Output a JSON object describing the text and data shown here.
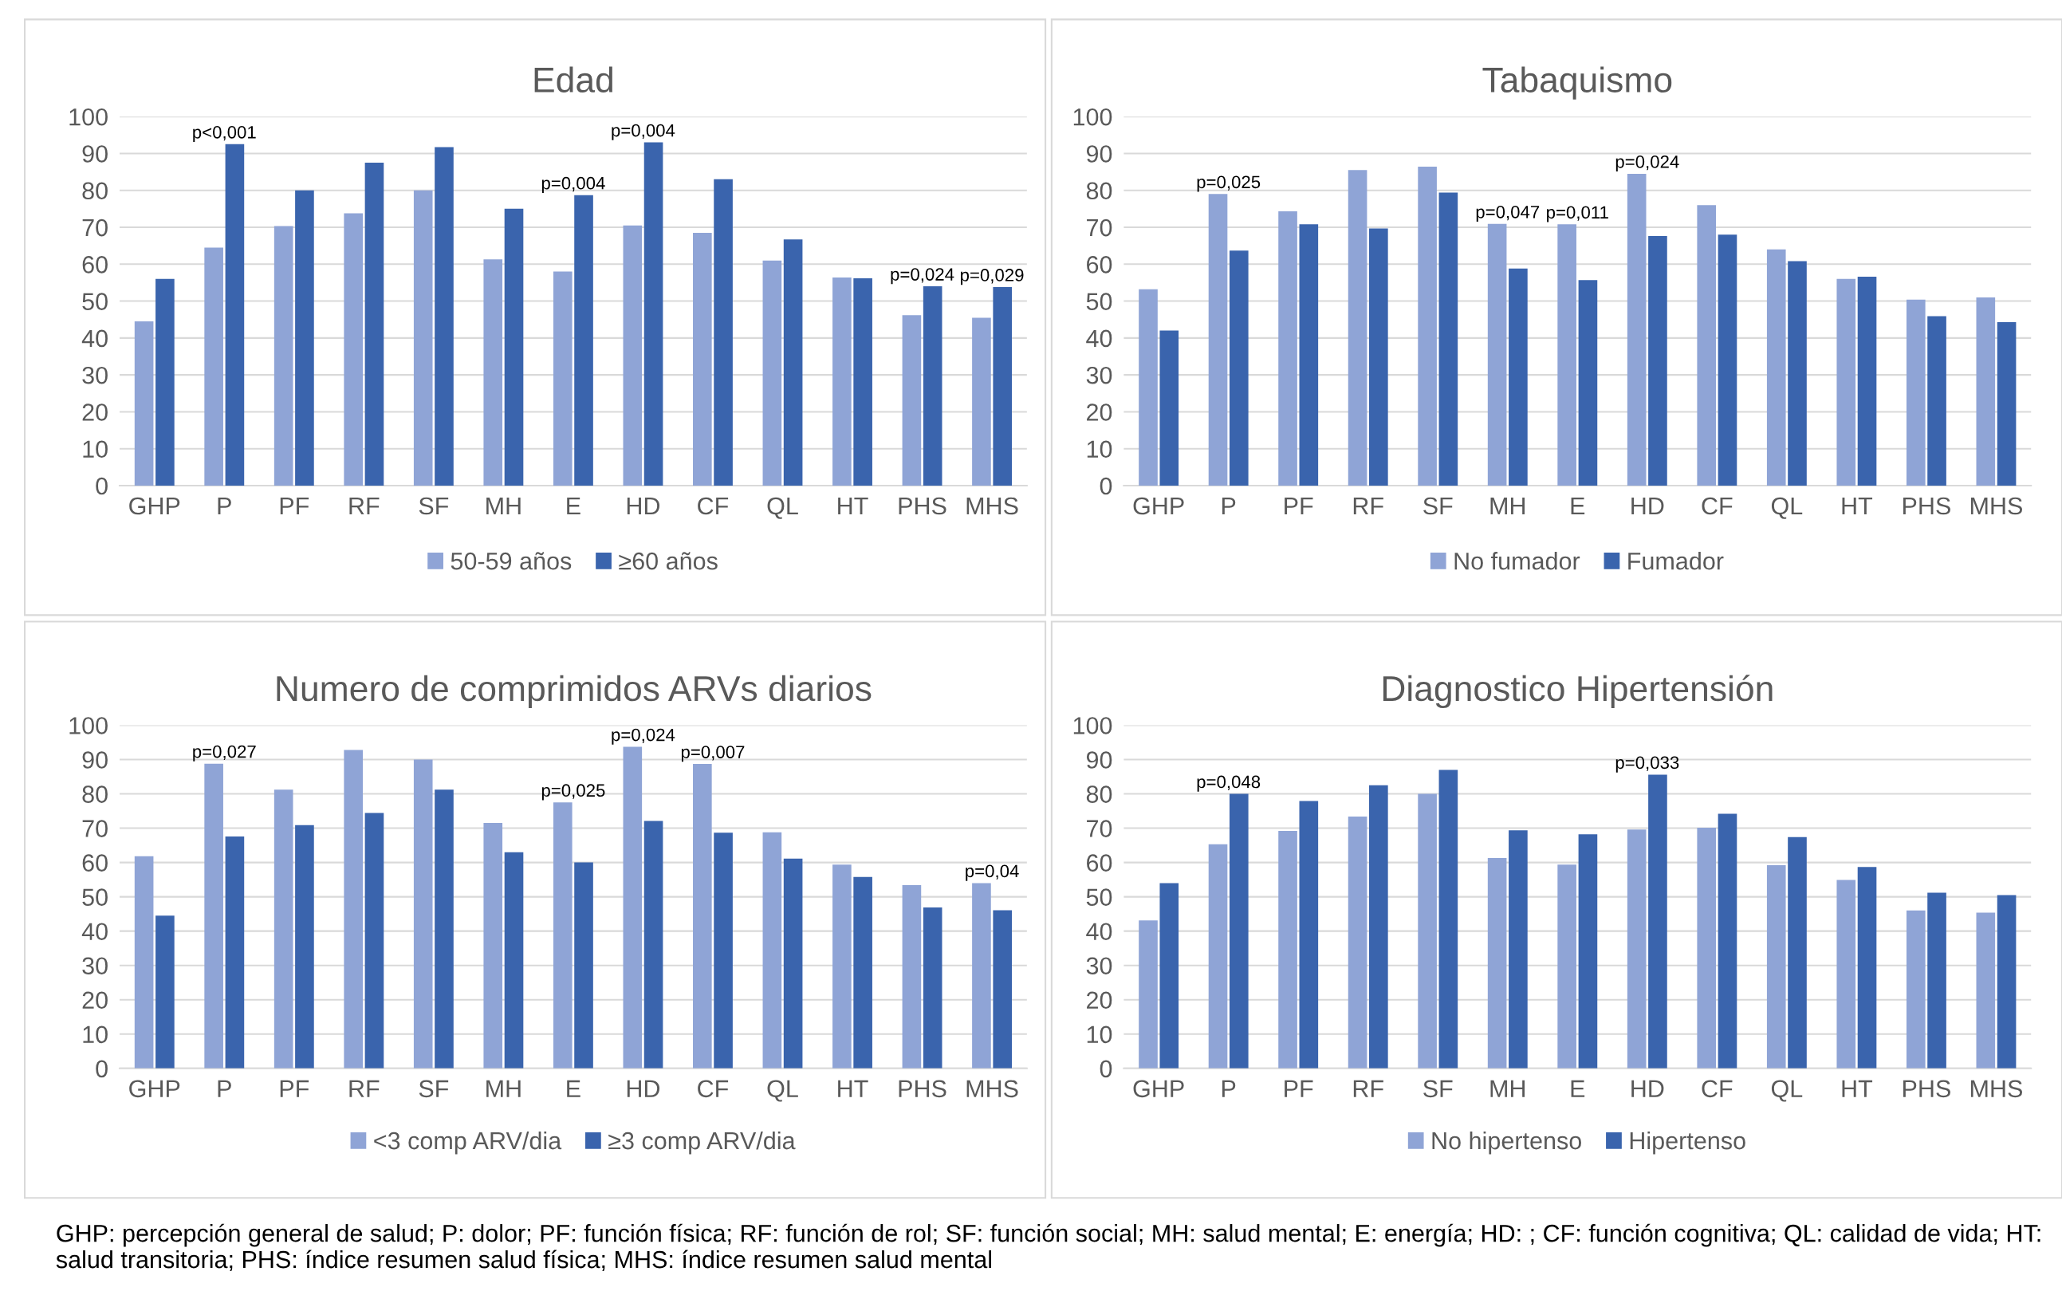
{
  "chart_data": [
    {
      "type": "bar",
      "title": "Edad",
      "categories": [
        "GHP",
        "P",
        "PF",
        "RF",
        "SF",
        "MH",
        "E",
        "HD",
        "CF",
        "QL",
        "HT",
        "PHS",
        "MHS"
      ],
      "series": [
        {
          "name": "50-59 años",
          "color": "#8fa4d6",
          "values": [
            44.5,
            64.5,
            70.3,
            73.8,
            80,
            61.3,
            58,
            70.5,
            68.5,
            61,
            56.4,
            46.2,
            45.5
          ]
        },
        {
          "name": "≥60 años",
          "color": "#3a64ad",
          "values": [
            56,
            92.5,
            80,
            87.5,
            91.7,
            75,
            78.7,
            93,
            83,
            66.7,
            56.2,
            54,
            53.8
          ]
        }
      ],
      "ylim": [
        0,
        100
      ],
      "yticks": [
        0,
        10,
        20,
        30,
        40,
        50,
        60,
        70,
        80,
        90,
        100
      ],
      "grid": "y",
      "legend": "bottom",
      "annotations": [
        {
          "text": "p<0,001",
          "x": "P",
          "y": 92.5
        },
        {
          "text": "p=0,004",
          "x": "E",
          "y": 78.7
        },
        {
          "text": "p=0,004",
          "x": "HD",
          "y": 93
        },
        {
          "text": "p=0,024",
          "x": "PHS",
          "y": 54
        },
        {
          "text": "p=0,029",
          "x": "MHS",
          "y": 53.8
        }
      ]
    },
    {
      "type": "bar",
      "title": "Tabaquismo",
      "categories": [
        "GHP",
        "P",
        "PF",
        "RF",
        "SF",
        "MH",
        "E",
        "HD",
        "CF",
        "QL",
        "HT",
        "PHS",
        "MHS"
      ],
      "series": [
        {
          "name": "No fumador",
          "color": "#8fa4d6",
          "values": [
            53.2,
            79,
            74.3,
            85.5,
            86.4,
            70.9,
            70.8,
            84.5,
            76,
            64,
            56,
            50.4,
            51
          ]
        },
        {
          "name": "Fumador",
          "color": "#3a64ad",
          "values": [
            42,
            63.7,
            70.8,
            69.7,
            79.4,
            58.8,
            55.7,
            67.6,
            68,
            60.8,
            56.6,
            45.9,
            44.3
          ]
        }
      ],
      "ylim": [
        0,
        100
      ],
      "yticks": [
        0,
        10,
        20,
        30,
        40,
        50,
        60,
        70,
        80,
        90,
        100
      ],
      "grid": "y",
      "legend": "bottom",
      "annotations": [
        {
          "text": "p=0,025",
          "x": "P",
          "y": 79
        },
        {
          "text": "p=0,047",
          "x": "MH",
          "y": 70.9
        },
        {
          "text": "p=0,011",
          "x": "E",
          "y": 70.8
        },
        {
          "text": "p=0,024",
          "x": "HD",
          "y": 84.5
        }
      ]
    },
    {
      "type": "bar",
      "title": "Numero de comprimidos ARVs diarios",
      "categories": [
        "GHP",
        "P",
        "PF",
        "RF",
        "SF",
        "MH",
        "E",
        "HD",
        "CF",
        "QL",
        "HT",
        "PHS",
        "MHS"
      ],
      "series": [
        {
          "name": "<3 comp ARV/dia",
          "color": "#8fa4d6",
          "values": [
            61.8,
            88.8,
            81.2,
            92.8,
            90,
            71.5,
            77.5,
            93.7,
            88.7,
            68.8,
            59.4,
            53.4,
            54
          ]
        },
        {
          "name": "≥3 comp ARV/dia",
          "color": "#3a64ad",
          "values": [
            44.5,
            67.6,
            70.9,
            74.4,
            81.2,
            63,
            60,
            72.1,
            68.7,
            61.1,
            55.8,
            46.9,
            46.1
          ]
        }
      ],
      "ylim": [
        0,
        100
      ],
      "yticks": [
        0,
        10,
        20,
        30,
        40,
        50,
        60,
        70,
        80,
        90,
        100
      ],
      "grid": "y",
      "legend": "bottom",
      "annotations": [
        {
          "text": "p=0,027",
          "x": "P",
          "y": 88.8
        },
        {
          "text": "p=0,025",
          "x": "E",
          "y": 77.5
        },
        {
          "text": "p=0,024",
          "x": "HD",
          "y": 93.7
        },
        {
          "text": "p=0,007",
          "x": "CF",
          "y": 88.7
        },
        {
          "text": "p=0,04",
          "x": "MHS",
          "y": 54
        }
      ]
    },
    {
      "type": "bar",
      "title": "Diagnostico Hipertensión",
      "categories": [
        "GHP",
        "P",
        "PF",
        "RF",
        "SF",
        "MH",
        "E",
        "HD",
        "CF",
        "QL",
        "HT",
        "PHS",
        "MHS"
      ],
      "series": [
        {
          "name": "No hipertenso",
          "color": "#8fa4d6",
          "values": [
            43.1,
            65.3,
            69.2,
            73.4,
            80,
            61.3,
            59.4,
            69.6,
            70.1,
            59.2,
            54.9,
            46,
            45.4
          ]
        },
        {
          "name": "Hipertenso",
          "color": "#3a64ad",
          "values": [
            54,
            80,
            77.9,
            82.5,
            87,
            69.4,
            68.2,
            85.6,
            74.2,
            67.4,
            58.7,
            51.2,
            50.5
          ]
        }
      ],
      "ylim": [
        0,
        100
      ],
      "yticks": [
        0,
        10,
        20,
        30,
        40,
        50,
        60,
        70,
        80,
        90,
        100
      ],
      "grid": "y",
      "legend": "bottom",
      "annotations": [
        {
          "text": "p=0,048",
          "x": "P",
          "y": 80
        },
        {
          "text": "p=0,033",
          "x": "HD",
          "y": 85.6
        },
        "GHP: percepción general de salud; P: dolor; PF: función física; RF: función de rol; SF: función social; MH: salud mental; E: energía; HD: ; CF: función cognitiva; QL: calidad de vida; HT: salud transitoria; PHS: índice resumen salud física; MHS: índice resumen salud mental"
      ]
    }
  ]
}
